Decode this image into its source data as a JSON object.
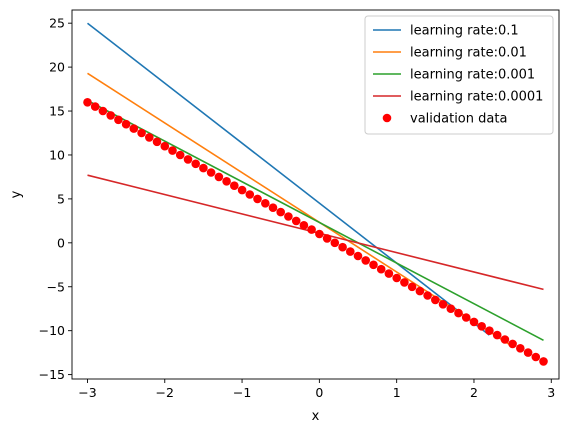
{
  "chart_data": {
    "type": "line",
    "xlabel": "x",
    "ylabel": "y",
    "xlim": [
      -3.2,
      3.1
    ],
    "ylim": [
      -15.5,
      26.5
    ],
    "xticks": [
      -3,
      -2,
      -1,
      0,
      1,
      2,
      3
    ],
    "yticks": [
      -15,
      -10,
      -5,
      0,
      5,
      10,
      15,
      20,
      25
    ],
    "grid": false,
    "legend_position": "top-right",
    "series": [
      {
        "name": "learning rate:0.1",
        "kind": "line",
        "color": "#1f77b4",
        "x": [
          -3.0,
          2.2
        ],
        "y": [
          25.0,
          -10.5
        ]
      },
      {
        "name": "learning rate:0.01",
        "kind": "line",
        "color": "#ff7f0e",
        "x": [
          -3.0,
          2.5
        ],
        "y": [
          19.3,
          -11.8
        ]
      },
      {
        "name": "learning rate:0.001",
        "kind": "line",
        "color": "#2ca02c",
        "x": [
          -3.0,
          2.9
        ],
        "y": [
          16.2,
          -11.1
        ]
      },
      {
        "name": "learning rate:0.0001",
        "kind": "line",
        "color": "#d62728",
        "x": [
          -3.0,
          2.9
        ],
        "y": [
          7.7,
          -5.3
        ]
      },
      {
        "name": "validation data",
        "kind": "scatter",
        "color": "#ff0000",
        "slope": -5.0,
        "intercept": 1.0,
        "x_start": -3.0,
        "x_step": 0.1,
        "count": 60
      }
    ]
  }
}
